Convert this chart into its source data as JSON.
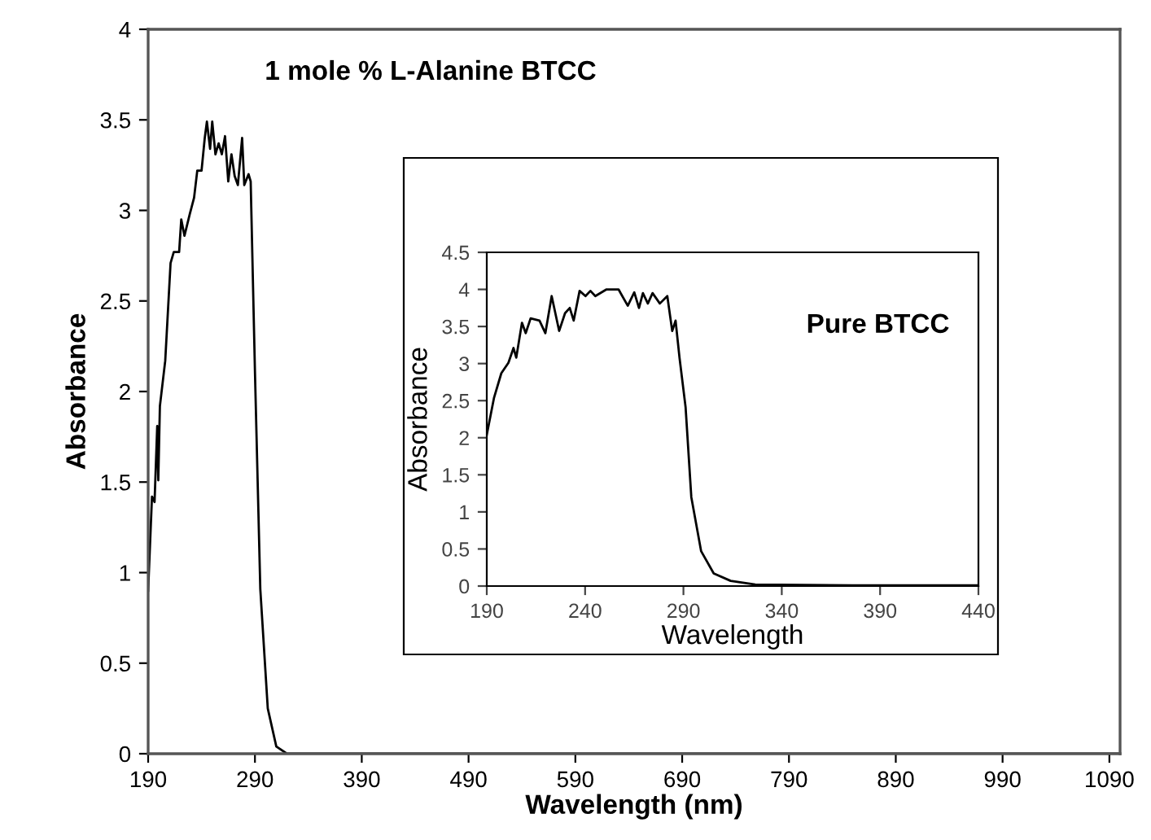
{
  "chart_data": [
    {
      "type": "line",
      "title": "1 mole % L-Alanine BTCC",
      "xlabel": "Wavelength (nm)",
      "ylabel": "Absorbance",
      "xlim": [
        190,
        1100
      ],
      "xticks": [
        190,
        290,
        390,
        490,
        590,
        690,
        790,
        890,
        990,
        1090
      ],
      "ylim": [
        0,
        4
      ],
      "yticks": [
        0,
        0.5,
        1,
        1.5,
        2,
        2.5,
        3,
        3.5,
        4
      ],
      "grid": false,
      "marker": "none",
      "line_style": "solid",
      "series": [
        {
          "color": "#000000",
          "x": [
            190,
            193.6,
            196,
            198.5,
            199.5,
            201,
            206,
            211,
            214,
            219,
            221,
            224,
            229,
            233,
            236,
            240,
            243,
            245,
            248,
            250,
            253,
            256,
            259,
            262,
            265,
            268,
            271,
            274,
            278,
            280,
            284,
            286,
            290,
            295,
            302,
            310,
            320,
            1100
          ],
          "values": [
            0.9,
            1.42,
            1.39,
            1.81,
            1.51,
            1.92,
            2.17,
            2.71,
            2.77,
            2.77,
            2.95,
            2.86,
            2.98,
            3.07,
            3.22,
            3.22,
            3.4,
            3.49,
            3.34,
            3.49,
            3.31,
            3.37,
            3.31,
            3.41,
            3.16,
            3.31,
            3.19,
            3.14,
            3.4,
            3.14,
            3.2,
            3.16,
            2.11,
            0.91,
            0.25,
            0.04,
            0,
            0
          ]
        }
      ]
    },
    {
      "type": "line",
      "xlabel": "Wavelength",
      "ylabel": "Absorbance",
      "annotations": [
        "Pure BTCC"
      ],
      "xlim": [
        190,
        440
      ],
      "xticks": [
        190,
        240,
        290,
        340,
        390,
        440
      ],
      "ylim": [
        0,
        4.5
      ],
      "yticks": [
        0,
        0.5,
        1,
        1.5,
        2,
        2.5,
        3,
        3.5,
        4,
        4.5
      ],
      "grid": false,
      "marker": "none",
      "line_style": "solid",
      "series": [
        {
          "color": "#000000",
          "x": [
            190,
            193.7,
            197.4,
            201,
            203.6,
            205,
            207.9,
            209.8,
            212.3,
            216.8,
            219.8,
            223,
            226.8,
            229.8,
            232.2,
            234.2,
            237.2,
            240.2,
            242.7,
            245.2,
            250.9,
            257,
            261.7,
            265,
            267.4,
            269.4,
            271.9,
            274.3,
            278,
            281.8,
            284.3,
            286,
            288,
            291.1,
            294,
            299,
            305.4,
            314,
            326.5,
            376,
            440
          ],
          "values": [
            2.04,
            2.54,
            2.87,
            3.01,
            3.21,
            3.08,
            3.55,
            3.41,
            3.61,
            3.58,
            3.41,
            3.91,
            3.44,
            3.68,
            3.75,
            3.58,
            3.98,
            3.91,
            3.98,
            3.91,
            4.0,
            4.0,
            3.78,
            3.96,
            3.75,
            3.95,
            3.81,
            3.95,
            3.81,
            3.91,
            3.44,
            3.58,
            3.08,
            2.41,
            1.2,
            0.47,
            0.17,
            0.07,
            0.02,
            0.01,
            0.01
          ]
        }
      ]
    }
  ]
}
